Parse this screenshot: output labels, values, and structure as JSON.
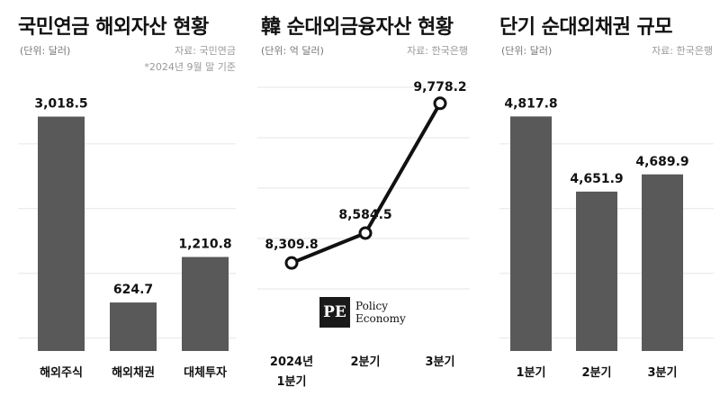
{
  "panels": [
    {
      "title": "국민연금 해외자산 현황",
      "unit": "(단위: 달러)",
      "source": "자료: 국민연금",
      "note": "*2024년 9월 말 기준"
    },
    {
      "title": "韓 순대외금융자산 현황",
      "unit": "(단위: 억 달러)",
      "source": "자료: 한국은행"
    },
    {
      "title": "단기 순대외채권 규모",
      "unit": "(단위: 달러)",
      "source": "자료: 한국은행"
    }
  ],
  "logo": {
    "mark": "PE",
    "line1": "Policy",
    "line2": "Economy"
  },
  "chart_data": [
    {
      "type": "bar",
      "categories": [
        "해외주식",
        "해외채권",
        "대체투자"
      ],
      "values": [
        3018.5,
        624.7,
        1210.8
      ],
      "value_labels": [
        "3,018.5",
        "624.7",
        "1,210.8"
      ],
      "title": "국민연금 해외자산 현황",
      "ylim": [
        0,
        3500
      ],
      "grid": true
    },
    {
      "type": "line",
      "categories": [
        "2024년 1분기",
        "2분기",
        "3분기"
      ],
      "category_lines": [
        [
          "2024년",
          "1분기"
        ],
        [
          "2분기"
        ],
        [
          "3분기"
        ]
      ],
      "values": [
        8309.8,
        8584.5,
        9778.2
      ],
      "value_labels": [
        "8,309.8",
        "8,584.5",
        "9,778.2"
      ],
      "title": "韓 순대외금융자산 현황",
      "ylim": [
        7500,
        10000
      ],
      "grid": true
    },
    {
      "type": "bar",
      "categories": [
        "1분기",
        "2분기",
        "3분기"
      ],
      "values": [
        4817.8,
        4651.9,
        4689.9
      ],
      "value_labels": [
        "4,817.8",
        "4,651.9",
        "4,689.9"
      ],
      "title": "단기 순대외채권 규모",
      "ylim": [
        4300,
        4900
      ],
      "grid": true
    }
  ]
}
